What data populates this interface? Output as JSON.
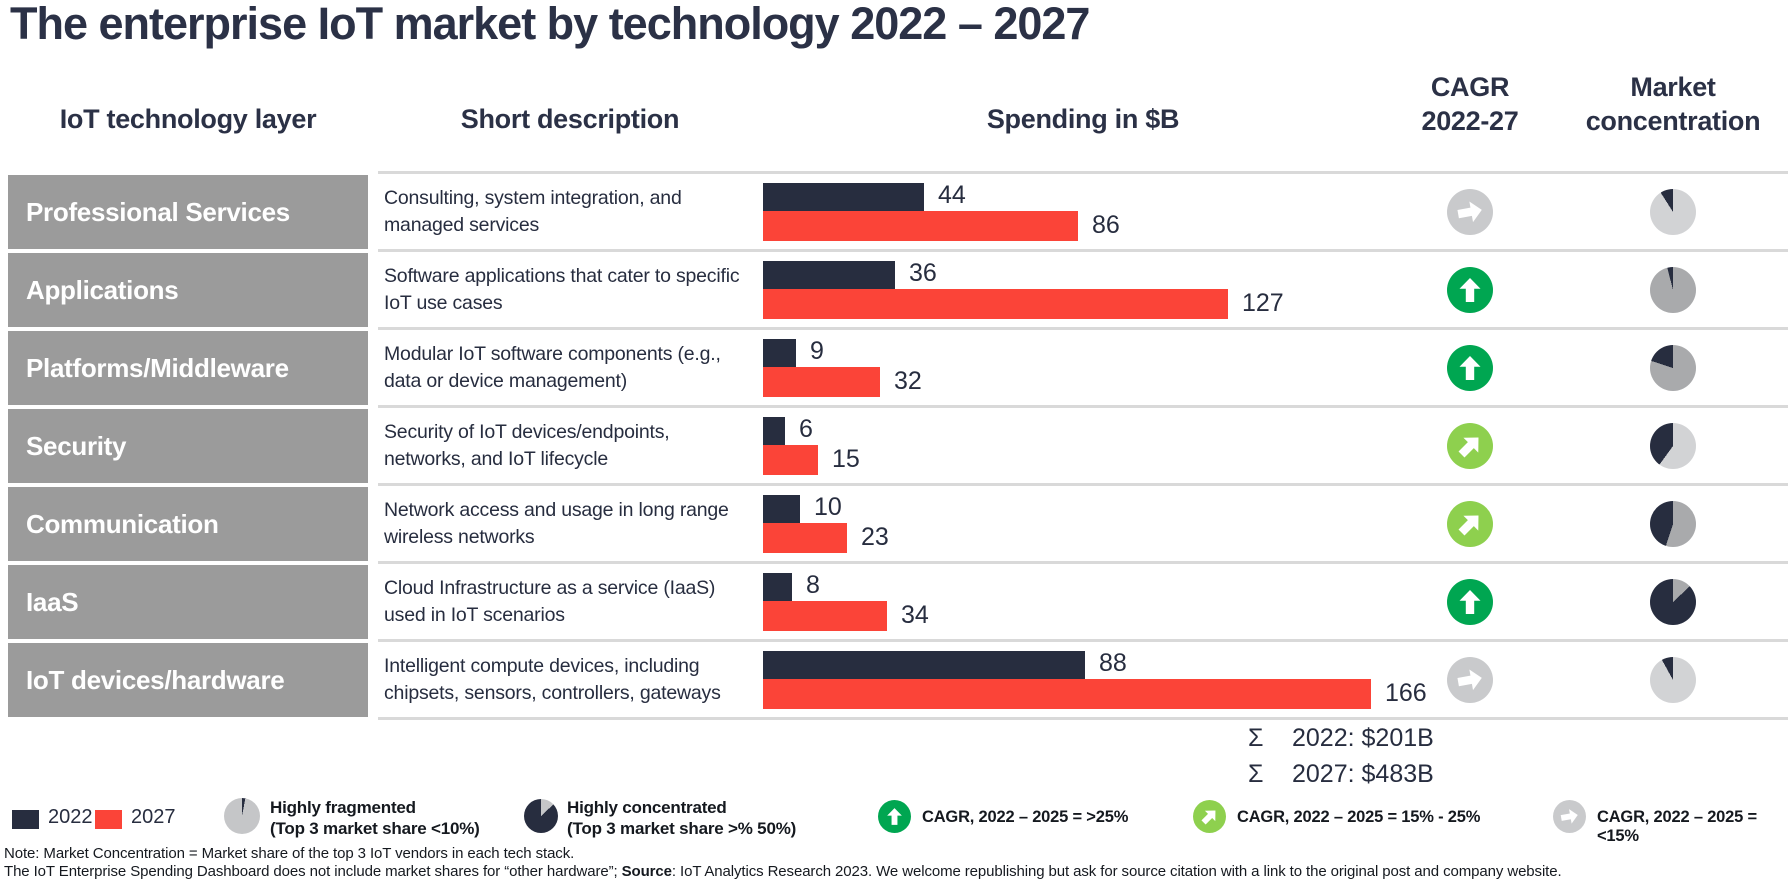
{
  "title": "The enterprise IoT market by technology 2022 – 2027",
  "columns": {
    "layer": "IoT technology layer",
    "description": "Short description",
    "spending": "Spending in $B",
    "cagr_line1": "CAGR",
    "cagr_line2": "2022-27",
    "market_line1": "Market",
    "market_line2": "concentration"
  },
  "rows": [
    {
      "layer": "Professional Services",
      "description": "Consulting, system integration, and managed services",
      "v2022": 44,
      "v2027": 86,
      "cagr": "flat",
      "pie": {
        "gray_pct": 91,
        "shade": "light"
      }
    },
    {
      "layer": "Applications",
      "description": "Software applications that cater to specific IoT use cases",
      "v2022": 36,
      "v2027": 127,
      "cagr": "up",
      "pie": {
        "gray_pct": 96,
        "shade": "mid"
      }
    },
    {
      "layer": "Platforms/Middleware",
      "description": "Modular IoT software components (e.g., data or device management)",
      "v2022": 9,
      "v2027": 32,
      "cagr": "up",
      "pie": {
        "gray_pct": 80,
        "shade": "mid"
      }
    },
    {
      "layer": "Security",
      "description": "Security of IoT devices/endpoints, networks, and IoT lifecycle",
      "v2022": 6,
      "v2027": 15,
      "cagr": "diag",
      "pie": {
        "gray_pct": 60,
        "shade": "light"
      }
    },
    {
      "layer": "Communication",
      "description": "Network access and usage in long range wireless networks",
      "v2022": 10,
      "v2027": 23,
      "cagr": "diag",
      "pie": {
        "gray_pct": 55,
        "shade": "mid"
      }
    },
    {
      "layer": "IaaS",
      "description": "Cloud Infrastructure as a service (IaaS) used in IoT scenarios",
      "v2022": 8,
      "v2027": 34,
      "cagr": "up",
      "pie": {
        "gray_pct": 13,
        "shade": "mid"
      }
    },
    {
      "layer": "IoT devices/hardware",
      "description": "Intelligent compute devices, including chipsets, sensors, controllers, gateways",
      "v2022": 88,
      "v2027": 166,
      "cagr": "flat",
      "pie": {
        "gray_pct": 92,
        "shade": "light"
      }
    }
  ],
  "totals": {
    "sigma": "Σ",
    "line1": "2022: $201B",
    "line2": "2027: $483B"
  },
  "legend": {
    "swatch_2022_label": "2022",
    "swatch_2027_label": "2027",
    "fragmented_line1": "Highly fragmented",
    "fragmented_line2": "(Top 3 market share <10%)",
    "fragmented_icon": "fragmented-pie-icon",
    "concentrated_line1": "Highly concentrated",
    "concentrated_line2": "(Top 3 market share >% 50%)",
    "concentrated_icon": "concentrated-pie-icon",
    "cagr_high": "CAGR, 2022 – 2025 = >25%",
    "cagr_mid": "CAGR, 2022 – 2025 = 15% - 25%",
    "cagr_low": "CAGR, 2022 – 2025 = <15%"
  },
  "notes": {
    "line1": "Note: Market Concentration = Market share of the top 3 IoT vendors in each tech stack.",
    "line2_pre": "The IoT Enterprise Spending Dashboard does not include market shares for “other hardware”; ",
    "line2_bold": "Source",
    "line2_post": ": IoT Analytics Research 2023. We welcome republishing but ask for source citation with a link to the original post and company website."
  },
  "colors": {
    "navy": "#272d3f",
    "red": "#fb4438",
    "label_box_gray": "#9b9b9b",
    "separator_gray": "#d9d9d9",
    "cagr_up_green": "#00a651",
    "cagr_diag_green": "#8ed04e",
    "cagr_flat_gray": "#c9cacc",
    "pie_light_gray": "#d2d3d5",
    "pie_mid_gray": "#a9aaac"
  },
  "chart_data": {
    "type": "bar",
    "orientation": "horizontal",
    "title": "The enterprise IoT market by technology 2022 – 2027",
    "xlabel": "Spending in $B",
    "categories": [
      "Professional Services",
      "Applications",
      "Platforms/Middleware",
      "Security",
      "Communication",
      "IaaS",
      "IoT devices/hardware"
    ],
    "series": [
      {
        "name": "2022",
        "color": "#272d3f",
        "values": [
          44,
          36,
          9,
          6,
          10,
          8,
          88
        ]
      },
      {
        "name": "2027",
        "color": "#fb4438",
        "values": [
          86,
          127,
          32,
          15,
          23,
          34,
          166
        ]
      }
    ],
    "totals": {
      "2022": "$201B",
      "2027": "$483B"
    },
    "cagr_2022_27": [
      "<15%",
      ">25%",
      ">25%",
      "15% - 25%",
      "15% - 25%",
      ">25%",
      "<15%"
    ],
    "market_concentration_dark_share_pct": [
      9,
      4,
      20,
      40,
      45,
      87,
      8
    ],
    "legend_position": "bottom",
    "grid": false,
    "value_labels": true
  }
}
